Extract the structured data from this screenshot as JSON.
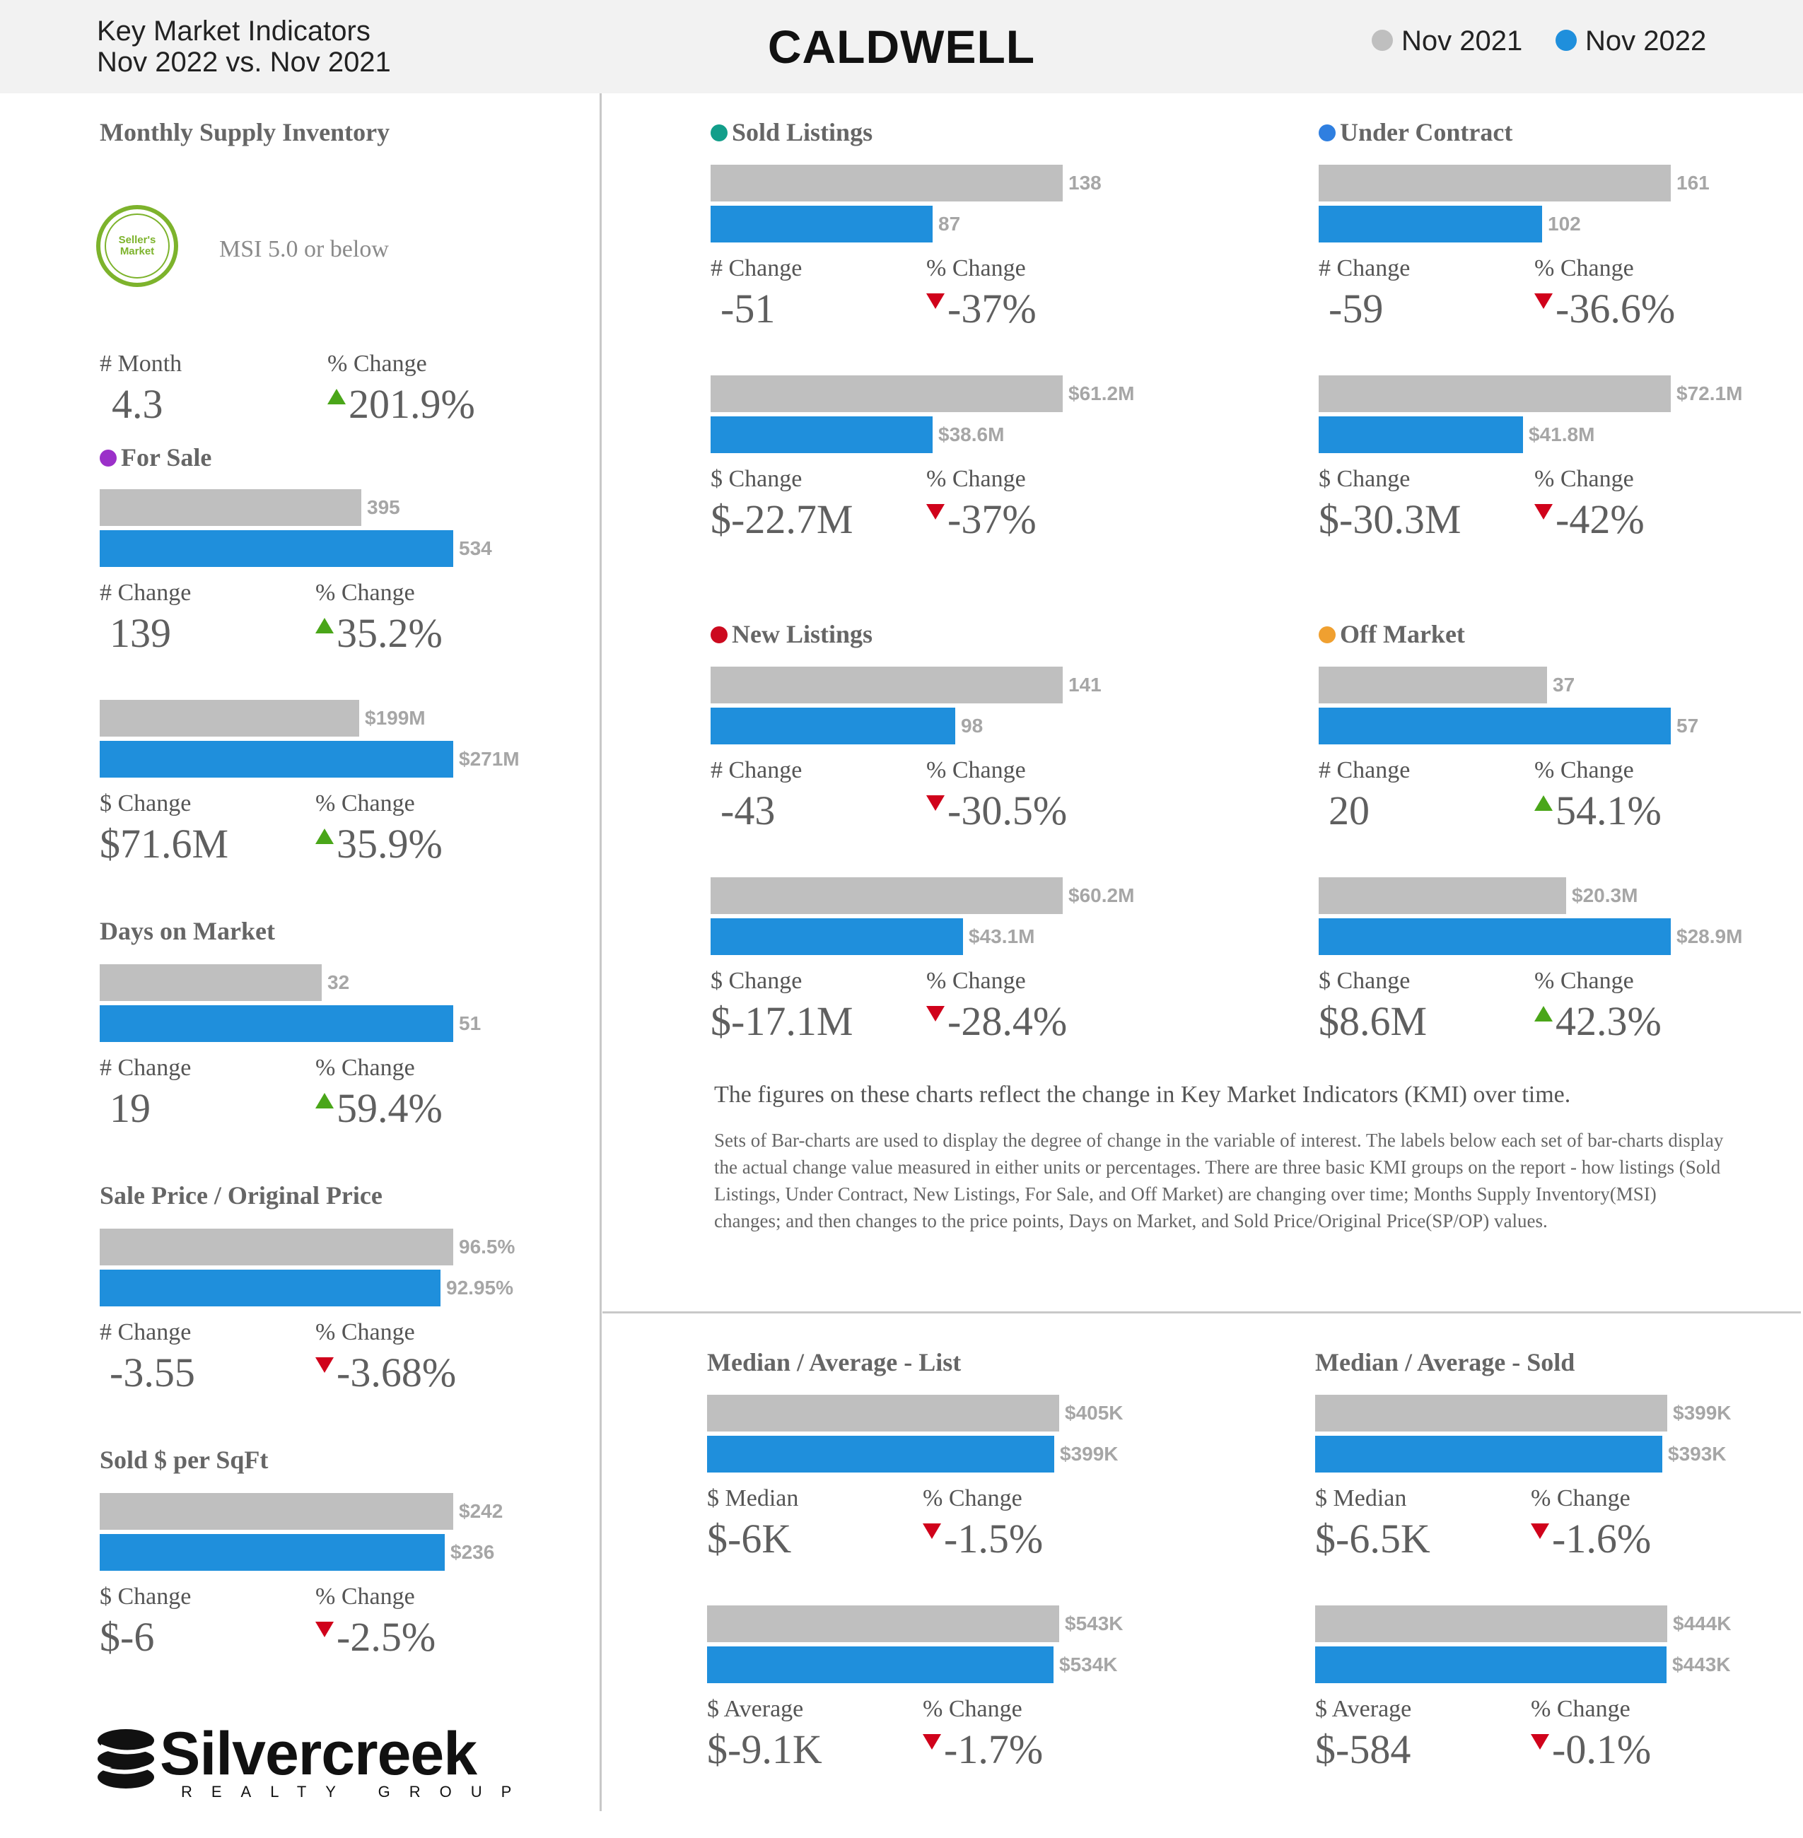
{
  "header": {
    "subtitle_line1": "Key Market Indicators",
    "subtitle_line2": "Nov 2022 vs. Nov 2021",
    "city": "CALDWELL",
    "legend": [
      {
        "label": "Nov 2021",
        "color": "#bfbfbf"
      },
      {
        "label": "Nov 2022",
        "color": "#1f8fdc"
      }
    ]
  },
  "msi": {
    "title": "Monthly Supply Inventory",
    "seal_text": "Seller's Market",
    "note": "MSI 5.0 or below",
    "month_label": "# Month",
    "month_value": "4.3",
    "pct_label": "% Change",
    "pct_value": "201.9%",
    "pct_direction": "up"
  },
  "notes": {
    "main": "The figures on these charts reflect the change in Key Market Indicators (KMI) over time.",
    "body": "Sets of Bar-charts are used to display the degree of change in the variable of interest. The labels below each set of bar-charts display the actual change value measured in either units or percentages. There are three basic KMI groups on the report - how listings (Sold Listings, Under Contract, New Listings, For Sale, and Off Market) are changing over time; Months Supply Inventory(MSI) changes; and then changes to the price points, Days on Market, and Sold Price/Original Price(SP/OP) values."
  },
  "logo": {
    "name": "Silvercreek",
    "sub": "REALTY GROUP"
  },
  "chart_data": [
    {
      "id": "for-sale-count",
      "type": "bar",
      "title": "For Sale",
      "title_dot": "#9b30c9",
      "categories": [
        "Nov 2021",
        "Nov 2022"
      ],
      "values": [
        395,
        534
      ],
      "labels": [
        "395",
        "534"
      ],
      "change_label": "# Change",
      "change_value": "139",
      "pct_label": "% Change",
      "pct_value": "35.2%",
      "pct_direction": "up"
    },
    {
      "id": "for-sale-dollar",
      "type": "bar",
      "title": "",
      "categories": [
        "Nov 2021",
        "Nov 2022"
      ],
      "values": [
        199,
        271
      ],
      "labels": [
        "$199M",
        "$271M"
      ],
      "change_label": "$ Change",
      "change_value": "$71.6M",
      "pct_label": "% Change",
      "pct_value": "35.9%",
      "pct_direction": "up"
    },
    {
      "id": "days-on-market",
      "type": "bar",
      "title": "Days on Market",
      "categories": [
        "Nov 2021",
        "Nov 2022"
      ],
      "values": [
        32,
        51
      ],
      "labels": [
        "32",
        "51"
      ],
      "change_label": "# Change",
      "change_value": "19",
      "pct_label": "% Change",
      "pct_value": "59.4%",
      "pct_direction": "up"
    },
    {
      "id": "sale-price-original",
      "type": "bar",
      "title": "Sale Price / Original Price",
      "categories": [
        "Nov 2021",
        "Nov 2022"
      ],
      "values": [
        96.5,
        92.95
      ],
      "labels": [
        "96.5%",
        "92.95%"
      ],
      "change_label": "# Change",
      "change_value": "-3.55",
      "pct_label": "% Change",
      "pct_value": "-3.68%",
      "pct_direction": "down"
    },
    {
      "id": "sold-per-sqft",
      "type": "bar",
      "title": "Sold $ per SqFt",
      "categories": [
        "Nov 2021",
        "Nov 2022"
      ],
      "values": [
        242,
        236
      ],
      "labels": [
        "$242",
        "$236"
      ],
      "change_label": "$ Change",
      "change_value": "$-6",
      "pct_label": "% Change",
      "pct_value": "-2.5%",
      "pct_direction": "down"
    },
    {
      "id": "sold-listings-count",
      "type": "bar",
      "title": "Sold Listings",
      "title_dot": "#129e8a",
      "categories": [
        "Nov 2021",
        "Nov 2022"
      ],
      "values": [
        138,
        87
      ],
      "labels": [
        "138",
        "87"
      ],
      "change_label": "# Change",
      "change_value": "-51",
      "pct_label": "% Change",
      "pct_value": "-37%",
      "pct_direction": "down"
    },
    {
      "id": "sold-listings-dollar",
      "type": "bar",
      "title": "",
      "categories": [
        "Nov 2021",
        "Nov 2022"
      ],
      "values": [
        61.2,
        38.6
      ],
      "labels": [
        "$61.2M",
        "$38.6M"
      ],
      "change_label": "$ Change",
      "change_value": "$-22.7M",
      "pct_label": "% Change",
      "pct_value": "-37%",
      "pct_direction": "down"
    },
    {
      "id": "under-contract-count",
      "type": "bar",
      "title": "Under Contract",
      "title_dot": "#2f7fe0",
      "categories": [
        "Nov 2021",
        "Nov 2022"
      ],
      "values": [
        161,
        102
      ],
      "labels": [
        "161",
        "102"
      ],
      "change_label": "# Change",
      "change_value": "-59",
      "pct_label": "% Change",
      "pct_value": "-36.6%",
      "pct_direction": "down"
    },
    {
      "id": "under-contract-dollar",
      "type": "bar",
      "title": "",
      "categories": [
        "Nov 2021",
        "Nov 2022"
      ],
      "values": [
        72.1,
        41.8
      ],
      "labels": [
        "$72.1M",
        "$41.8M"
      ],
      "change_label": "$ Change",
      "change_value": "$-30.3M",
      "pct_label": "% Change",
      "pct_value": "-42%",
      "pct_direction": "down"
    },
    {
      "id": "new-listings-count",
      "type": "bar",
      "title": "New Listings",
      "title_dot": "#cc0a1f",
      "categories": [
        "Nov 2021",
        "Nov 2022"
      ],
      "values": [
        141,
        98
      ],
      "labels": [
        "141",
        "98"
      ],
      "change_label": "# Change",
      "change_value": "-43",
      "pct_label": "% Change",
      "pct_value": "-30.5%",
      "pct_direction": "down"
    },
    {
      "id": "new-listings-dollar",
      "type": "bar",
      "title": "",
      "categories": [
        "Nov 2021",
        "Nov 2022"
      ],
      "values": [
        60.2,
        43.1
      ],
      "labels": [
        "$60.2M",
        "$43.1M"
      ],
      "change_label": "$ Change",
      "change_value": "$-17.1M",
      "pct_label": "% Change",
      "pct_value": "-28.4%",
      "pct_direction": "down"
    },
    {
      "id": "off-market-count",
      "type": "bar",
      "title": "Off Market",
      "title_dot": "#f0a030",
      "categories": [
        "Nov 2021",
        "Nov 2022"
      ],
      "values": [
        37,
        57
      ],
      "labels": [
        "37",
        "57"
      ],
      "change_label": "# Change",
      "change_value": "20",
      "pct_label": "% Change",
      "pct_value": "54.1%",
      "pct_direction": "up"
    },
    {
      "id": "off-market-dollar",
      "type": "bar",
      "title": "",
      "categories": [
        "Nov 2021",
        "Nov 2022"
      ],
      "values": [
        20.3,
        28.9
      ],
      "labels": [
        "$20.3M",
        "$28.9M"
      ],
      "change_label": "$ Change",
      "change_value": "$8.6M",
      "pct_label": "% Change",
      "pct_value": "42.3%",
      "pct_direction": "up"
    },
    {
      "id": "list-median",
      "type": "bar",
      "title": "Median / Average - List",
      "categories": [
        "Nov 2021",
        "Nov 2022"
      ],
      "values": [
        405,
        399
      ],
      "labels": [
        "$405K",
        "$399K"
      ],
      "change_label": "$ Median",
      "change_value": "$-6K",
      "pct_label": "% Change",
      "pct_value": "-1.5%",
      "pct_direction": "down"
    },
    {
      "id": "list-average",
      "type": "bar",
      "title": "",
      "categories": [
        "Nov 2021",
        "Nov 2022"
      ],
      "values": [
        543,
        534
      ],
      "labels": [
        "$543K",
        "$534K"
      ],
      "change_label": "$ Average",
      "change_value": "$-9.1K",
      "pct_label": "% Change",
      "pct_value": "-1.7%",
      "pct_direction": "down"
    },
    {
      "id": "sold-median",
      "type": "bar",
      "title": "Median / Average - Sold",
      "categories": [
        "Nov 2021",
        "Nov 2022"
      ],
      "values": [
        399,
        393
      ],
      "labels": [
        "$399K",
        "$393K"
      ],
      "change_label": "$ Median",
      "change_value": "$-6.5K",
      "pct_label": "% Change",
      "pct_value": "-1.6%",
      "pct_direction": "down"
    },
    {
      "id": "sold-average",
      "type": "bar",
      "title": "",
      "categories": [
        "Nov 2021",
        "Nov 2022"
      ],
      "values": [
        444,
        443
      ],
      "labels": [
        "$444K",
        "$443K"
      ],
      "change_label": "$ Average",
      "change_value": "$-584",
      "pct_label": "% Change",
      "pct_value": "-0.1%",
      "pct_direction": "down"
    }
  ]
}
